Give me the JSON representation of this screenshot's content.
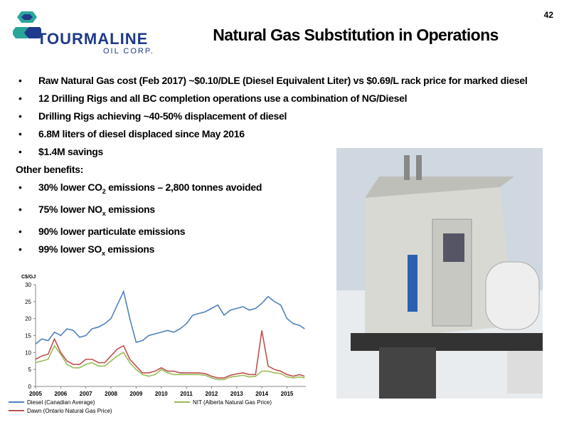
{
  "page_number": "42",
  "logo": {
    "name": "TOURMALINE",
    "sub": "OIL CORP."
  },
  "title": "Natural Gas Substitution in Operations",
  "bullets": [
    "Raw Natural Gas cost (Feb 2017) ~$0.10/DLE (Diesel Equivalent Liter) vs $0.69/L rack price for marked diesel",
    "12 Drilling Rigs and all BC completion operations use a combination of NG/Diesel",
    "Drilling Rigs achieving ~40-50% displacement of diesel",
    "6.8M liters of diesel displaced since May 2016",
    "$1.4M savings"
  ],
  "other_heading": "Other benefits:",
  "benefits": [
    {
      "parts": [
        "30% lower CO",
        "2",
        " emissions – 2,800 tonnes avoided"
      ]
    },
    {
      "parts": [
        "75% lower NO",
        "x",
        " emissions"
      ]
    },
    {
      "parts": [
        "90% lower particulate emissions"
      ]
    },
    {
      "parts": [
        "99% lower SO",
        "x",
        " emissions"
      ]
    }
  ],
  "chart_data": {
    "type": "line",
    "y_label": "C$/GJ",
    "x": [
      2005,
      2005.25,
      2005.5,
      2005.75,
      2006,
      2006.25,
      2006.5,
      2006.75,
      2007,
      2007.25,
      2007.5,
      2007.75,
      2008,
      2008.25,
      2008.5,
      2008.75,
      2009,
      2009.25,
      2009.5,
      2009.75,
      2010,
      2010.25,
      2010.5,
      2010.75,
      2011,
      2011.25,
      2011.5,
      2011.75,
      2012,
      2012.25,
      2012.5,
      2012.75,
      2013,
      2013.25,
      2013.5,
      2013.75,
      2014,
      2014.25,
      2014.5,
      2014.75,
      2015,
      2015.25,
      2015.5,
      2015.7
    ],
    "series": [
      {
        "name": "Diesel (Canadian Average)",
        "color": "#4f81bd",
        "values": [
          12.5,
          14,
          13.5,
          16,
          15,
          17,
          16.5,
          14.5,
          15,
          17,
          17.5,
          18.5,
          20,
          24,
          28,
          20,
          13,
          13.5,
          15,
          15.5,
          16,
          16.5,
          16,
          17,
          18.5,
          21,
          21.5,
          22,
          23,
          24,
          21,
          22.5,
          23,
          23.5,
          22.5,
          23,
          24.5,
          26.5,
          25,
          24,
          20,
          18.5,
          18,
          17
        ]
      },
      {
        "name": "NIT (Alberta Natural Gas Price)",
        "color": "#9bbb59",
        "values": [
          7,
          7.5,
          8,
          12,
          9.5,
          6.5,
          5.5,
          5.5,
          6.5,
          7,
          6,
          6,
          7.5,
          9,
          10,
          7,
          5,
          3.5,
          3,
          3.5,
          5,
          4,
          3.5,
          3.5,
          3.5,
          3.5,
          3.5,
          3.3,
          2.5,
          2,
          2,
          2.8,
          3,
          3.3,
          2.8,
          3,
          4.5,
          4.5,
          4,
          3.8,
          2.8,
          2.5,
          2.8,
          2.5
        ]
      },
      {
        "name": "Dawn (Ontario Natural Gas Price)",
        "color": "#c0504d",
        "values": [
          8,
          9,
          9.5,
          14,
          10,
          7.5,
          6.5,
          6.5,
          8,
          8,
          7,
          7,
          9,
          11,
          12,
          8,
          6,
          4,
          4,
          4.5,
          5.5,
          4.5,
          4.5,
          4,
          4,
          4,
          4,
          3.8,
          3,
          2.5,
          2.5,
          3.3,
          3.7,
          4,
          3.5,
          3.5,
          16.5,
          6,
          5,
          4.5,
          3.5,
          3,
          3.5,
          3
        ]
      }
    ],
    "xlim": [
      2005,
      2015.75
    ],
    "xticks": [
      2005,
      2006,
      2007,
      2008,
      2009,
      2010,
      2011,
      2012,
      2013,
      2014,
      2015
    ],
    "ylim": [
      0,
      30
    ],
    "yticks": [
      0,
      5,
      10,
      15,
      20,
      25,
      30
    ],
    "grid": false
  }
}
